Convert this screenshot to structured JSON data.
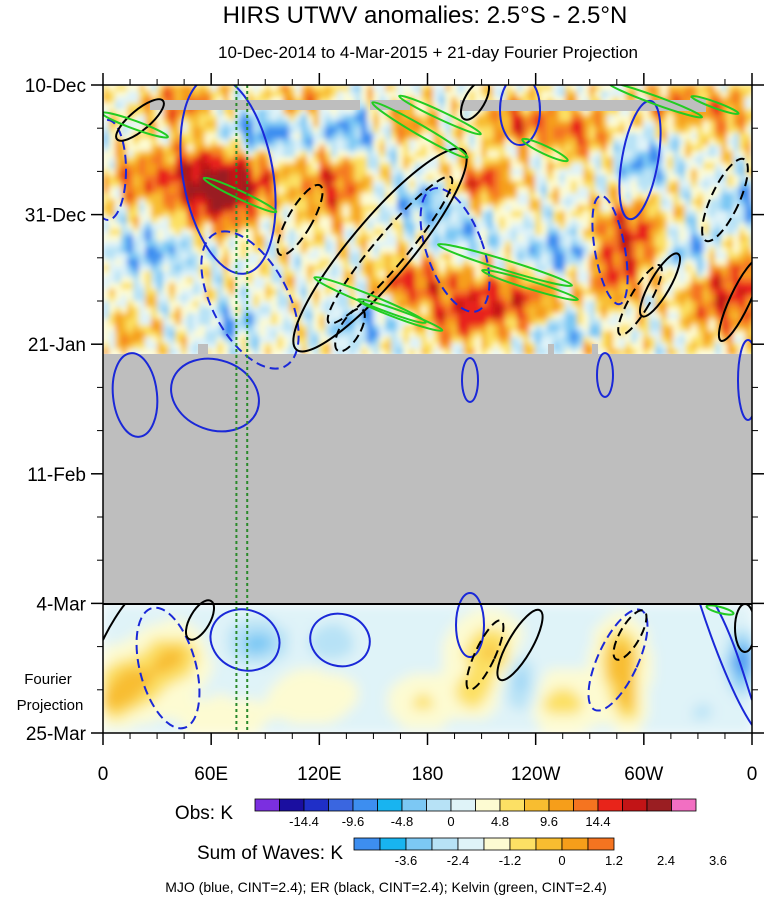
{
  "chart_data": {
    "type": "heatmap",
    "title": "HIRS UTWV anomalies: 2.5°S - 2.5°N",
    "subtitle": "10-Dec-2014 to 4-Mar-2015 + 21-day Fourier Projection",
    "x_tick_labels": [
      "0",
      "60E",
      "120E",
      "180",
      "120W",
      "60W",
      "0"
    ],
    "x_tick_lon": [
      0,
      60,
      120,
      180,
      240,
      300,
      360
    ],
    "y_tick_labels": [
      "10-Dec",
      "31-Dec",
      "21-Jan",
      "11-Feb",
      "4-Mar",
      "25-Mar"
    ],
    "y_tick_days": [
      0,
      21,
      42,
      63,
      84,
      105
    ],
    "projection_label": "Fourier\nProjection",
    "projection_label_lines": [
      "Fourier",
      "Projection"
    ],
    "obs_colorbar": {
      "label": "Obs: K",
      "tick_labels": [
        "-14.4",
        "-9.6",
        "-4.8",
        "0",
        "4.8",
        "9.6",
        "14.4"
      ],
      "colors": [
        "#7b2fe0",
        "#1a0ea0",
        "#1f2fc8",
        "#3a66e0",
        "#3d8ef0",
        "#18b4f0",
        "#7cc8f4",
        "#b7e2f6",
        "#dff3f8",
        "#fdfbd2",
        "#fce064",
        "#f8bd30",
        "#f69e1a",
        "#f57420",
        "#e8241a",
        "#c21416",
        "#9a1e22",
        "#f26fc2"
      ]
    },
    "waves_colorbar": {
      "label": "Sum of Waves: K",
      "tick_labels": [
        "-3.6",
        "-2.4",
        "-1.2",
        "0",
        "1.2",
        "2.4",
        "3.6"
      ],
      "colors": [
        "#3d8ef0",
        "#18b4f0",
        "#7cc8f4",
        "#b7e2f6",
        "#dff3f8",
        "#fdfbd2",
        "#fce064",
        "#f8bd30",
        "#f69e1a",
        "#f57420"
      ]
    },
    "footer": "MJO (blue, CINT=2.4); ER (black, CINT=2.4); Kelvin (green, CINT=2.4)",
    "contours": {
      "mjo_color": "#1a28d8",
      "er_color": "#000000",
      "kelvin_color": "#22cc22"
    },
    "colors": {
      "missing": "#bebebe",
      "marker_lines": "#2a8a2a"
    },
    "marker_lines_lon": [
      74,
      80
    ]
  }
}
